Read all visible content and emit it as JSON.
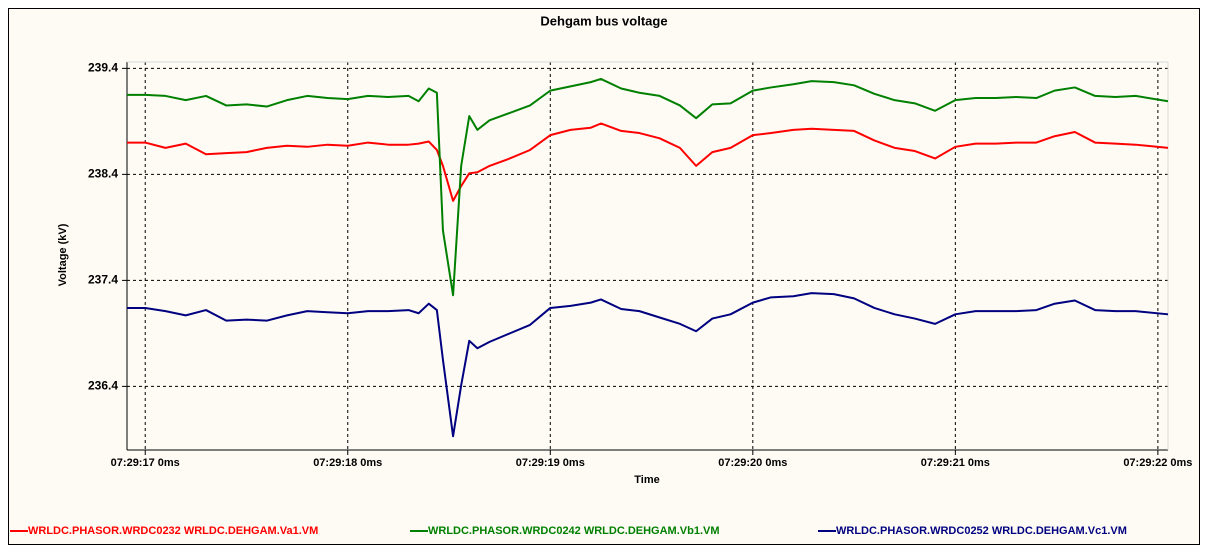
{
  "chart_data": {
    "type": "line",
    "title": "Dehgam bus voltage",
    "x_label": "Time",
    "y_label": "Voltage (kV)",
    "xlim": [
      16.91,
      22.05
    ],
    "ylim": [
      235.8,
      239.46
    ],
    "xticks": [
      {
        "value": 17,
        "label": "07:29:17 0ms"
      },
      {
        "value": 18,
        "label": "07:29:18 0ms"
      },
      {
        "value": 19,
        "label": "07:29:19 0ms"
      },
      {
        "value": 20,
        "label": "07:29:20 0ms"
      },
      {
        "value": 21,
        "label": "07:29:21 0ms"
      },
      {
        "value": 22,
        "label": "07:29:22 0ms"
      }
    ],
    "yticks": [
      236.4,
      237.4,
      238.4,
      239.4
    ],
    "grid": true,
    "legend": "bottom",
    "x": [
      16.91,
      17.0,
      17.1,
      17.2,
      17.3,
      17.4,
      17.5,
      17.6,
      17.7,
      17.8,
      17.9,
      18.0,
      18.1,
      18.2,
      18.3,
      18.35,
      18.4,
      18.44,
      18.47,
      18.52,
      18.56,
      18.6,
      18.64,
      18.7,
      18.8,
      18.9,
      19.0,
      19.1,
      19.2,
      19.25,
      19.35,
      19.44,
      19.54,
      19.64,
      19.72,
      19.8,
      19.89,
      20.0,
      20.09,
      20.2,
      20.29,
      20.4,
      20.5,
      20.6,
      20.7,
      20.8,
      20.9,
      21.0,
      21.1,
      21.2,
      21.3,
      21.4,
      21.49,
      21.59,
      21.69,
      21.79,
      21.89,
      22.05
    ],
    "series": [
      {
        "name": "WRLDC.PHASOR.WRDC0232 WRLDC.DEHGAM.Va1.VM",
        "color": "#ff0000",
        "values": [
          238.7,
          238.7,
          238.65,
          238.69,
          238.59,
          238.6,
          238.61,
          238.65,
          238.67,
          238.66,
          238.68,
          238.67,
          238.7,
          238.68,
          238.68,
          238.69,
          238.71,
          238.63,
          238.48,
          238.15,
          238.29,
          238.41,
          238.42,
          238.48,
          238.55,
          238.63,
          238.77,
          238.82,
          238.84,
          238.88,
          238.81,
          238.79,
          238.74,
          238.65,
          238.48,
          238.61,
          238.65,
          238.77,
          238.79,
          238.82,
          238.83,
          238.82,
          238.81,
          238.72,
          238.65,
          238.62,
          238.55,
          238.66,
          238.69,
          238.69,
          238.7,
          238.7,
          238.76,
          238.8,
          238.7,
          238.69,
          238.68,
          238.65
        ]
      },
      {
        "name": "WRLDC.PHASOR.WRDC0242 WRLDC.DEHGAM.Vb1.VM",
        "color": "#008000",
        "values": [
          239.15,
          239.15,
          239.14,
          239.1,
          239.14,
          239.05,
          239.06,
          239.04,
          239.1,
          239.14,
          239.12,
          239.11,
          239.14,
          239.13,
          239.14,
          239.09,
          239.21,
          239.17,
          237.87,
          237.26,
          238.48,
          238.95,
          238.82,
          238.91,
          238.98,
          239.05,
          239.19,
          239.23,
          239.27,
          239.3,
          239.21,
          239.17,
          239.14,
          239.05,
          238.93,
          239.06,
          239.07,
          239.19,
          239.22,
          239.25,
          239.28,
          239.27,
          239.24,
          239.16,
          239.1,
          239.07,
          239.0,
          239.1,
          239.12,
          239.12,
          239.13,
          239.12,
          239.19,
          239.22,
          239.14,
          239.13,
          239.14,
          239.09
        ]
      },
      {
        "name": "WRLDC.PHASOR.WRDC0252 WRLDC.DEHGAM.Vc1.VM",
        "color": "#000080",
        "values": [
          237.14,
          237.14,
          237.11,
          237.07,
          237.12,
          237.02,
          237.03,
          237.02,
          237.07,
          237.11,
          237.1,
          237.09,
          237.11,
          237.11,
          237.12,
          237.09,
          237.18,
          237.12,
          236.65,
          235.93,
          236.41,
          236.83,
          236.76,
          236.82,
          236.9,
          236.98,
          237.14,
          237.16,
          237.19,
          237.22,
          237.13,
          237.11,
          237.05,
          236.99,
          236.92,
          237.04,
          237.08,
          237.19,
          237.24,
          237.25,
          237.28,
          237.27,
          237.23,
          237.14,
          237.08,
          237.04,
          236.99,
          237.08,
          237.11,
          237.11,
          237.11,
          237.12,
          237.18,
          237.21,
          237.12,
          237.11,
          237.11,
          237.08
        ]
      }
    ]
  }
}
